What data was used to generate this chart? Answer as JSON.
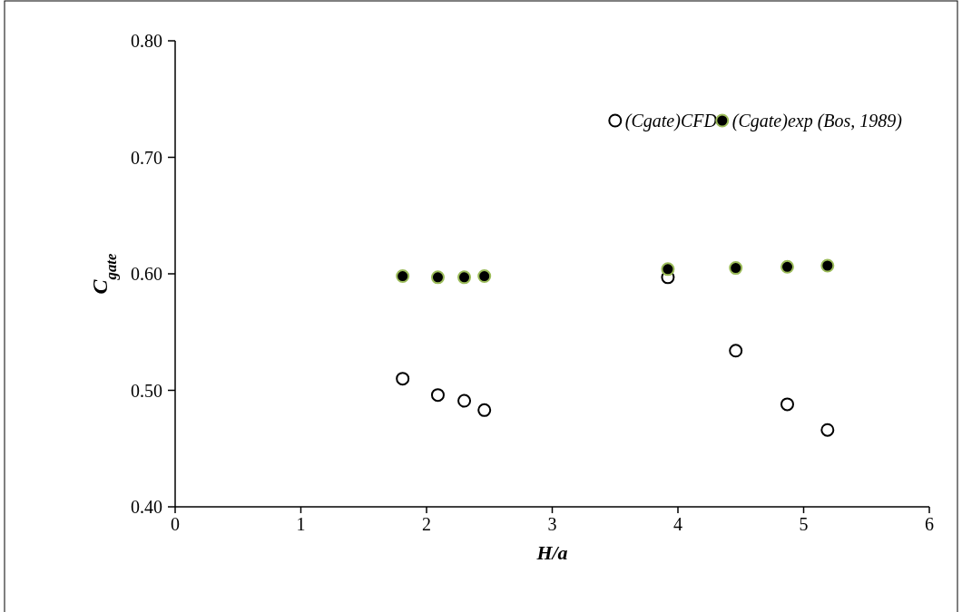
{
  "chart_data": {
    "type": "scatter",
    "xlabel": "H/a",
    "ylabel": "C$_{gate}$",
    "xlim": [
      0,
      6
    ],
    "xticks": [
      0,
      1,
      2,
      3,
      4,
      5,
      6
    ],
    "ylim": [
      0.4,
      0.8
    ],
    "yticks": [
      {
        "value": 0.4,
        "label": "0.40"
      },
      {
        "value": 0.5,
        "label": "0.50"
      },
      {
        "value": 0.6,
        "label": "0.60"
      },
      {
        "value": 0.7,
        "label": "0.70"
      },
      {
        "value": 0.8,
        "label": "0.80"
      }
    ],
    "x": [
      1.81,
      2.09,
      2.3,
      2.46,
      3.92,
      4.46,
      4.87,
      5.19
    ],
    "series": [
      {
        "name": "(Cgate)CFD",
        "color": "#ffffff",
        "values": [
          0.51,
          0.496,
          0.491,
          0.483,
          0.597,
          0.534,
          0.488,
          0.466
        ]
      },
      {
        "name": "(Cgate)exp (Bos, 1989)",
        "color": "#000000",
        "values": [
          0.598,
          0.597,
          0.597,
          0.598,
          0.604,
          0.605,
          0.606,
          0.607
        ]
      }
    ],
    "marker": "circle",
    "legend": "top right",
    "grid": false
  }
}
